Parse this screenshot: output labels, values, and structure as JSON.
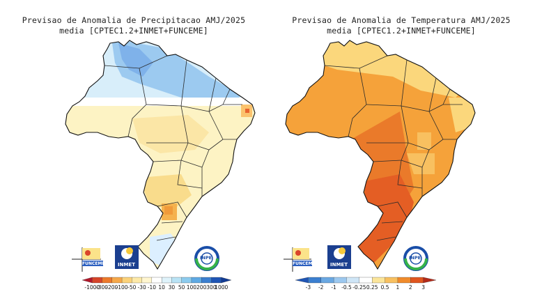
{
  "panels": [
    {
      "id": "precipitation",
      "title_line1": "Previsao de Anomalia de Precipitacao AMJ/2025",
      "title_line2": "media [CPTEC1.2+INMET+FUNCEME]",
      "colorbar": {
        "labels": [
          "-1000",
          "-300",
          "-200",
          "-100",
          "-50",
          "-30",
          "-10",
          "10",
          "30",
          "50",
          "100",
          "200",
          "300",
          "1000"
        ],
        "colors": [
          "#b2182b",
          "#d6452a",
          "#ec7a2c",
          "#f5a84a",
          "#fbd27a",
          "#fde9a8",
          "#fff6d0",
          "#ffffff",
          "#dff3fb",
          "#b9e3f5",
          "#8ccbee",
          "#5ea9e3",
          "#3b7fd0",
          "#1f55b5",
          "#123b93"
        ]
      },
      "logos": {
        "left": "FUNCEME",
        "center": "INMET",
        "right": "INPE"
      }
    },
    {
      "id": "temperature",
      "title_line1": "Previsao de Anomalia de Temperatura AMJ/2025",
      "title_line2": "media [CPTEC1.2+INMET+FUNCEME]",
      "colorbar": {
        "labels": [
          "-3",
          "-2",
          "-1",
          "-0.5",
          "-0.25",
          "0.25",
          "0.5",
          "1",
          "2",
          "3"
        ],
        "colors": [
          "#1f55b5",
          "#3b7fd0",
          "#6aa8e2",
          "#9cc8ef",
          "#cfe6f7",
          "#ffffff",
          "#fbe59a",
          "#f8c060",
          "#f08b2b",
          "#e0561f",
          "#b32a19"
        ]
      },
      "logos": {
        "left": "FUNCEME",
        "center": "INMET",
        "right": "INPE"
      }
    }
  ]
}
